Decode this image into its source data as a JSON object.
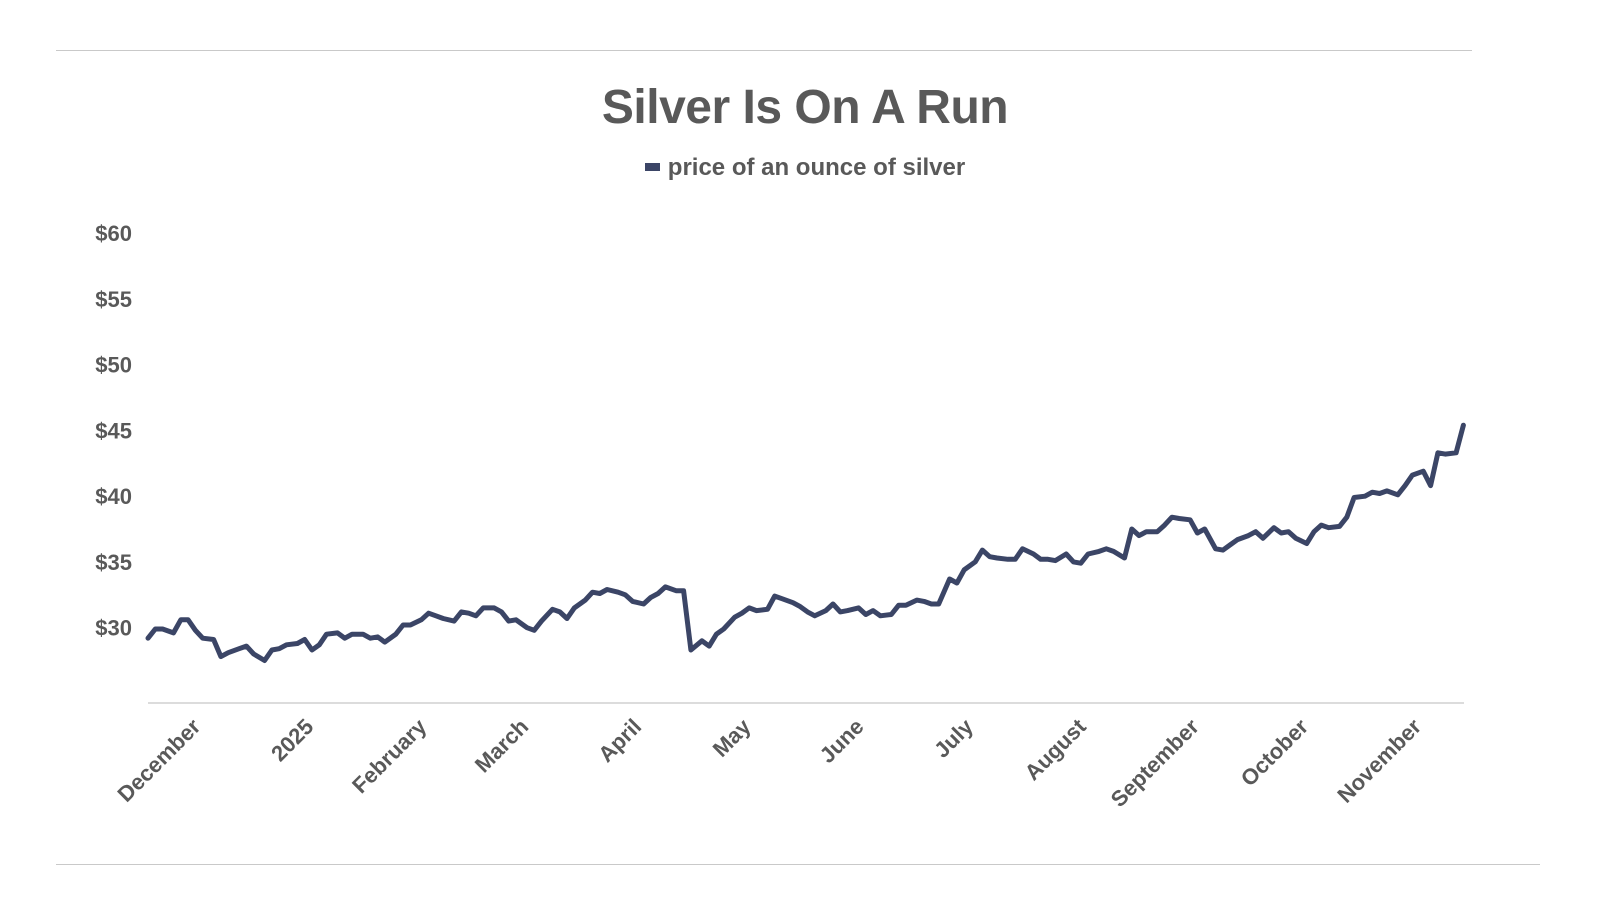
{
  "chart_data": {
    "type": "line",
    "title": "Silver Is On A Run",
    "legend_position": "top-center",
    "grid": false,
    "xlabel": "",
    "ylabel": "",
    "y_tick_labels": [
      "$30",
      "$35",
      "$40",
      "$45",
      "$50",
      "$55",
      "$60"
    ],
    "y_ticks": [
      30,
      35,
      40,
      45,
      50,
      55,
      60
    ],
    "ylim": [
      24.5,
      61
    ],
    "xlim": [
      "2024-11-25",
      "2025-11-25"
    ],
    "x_tick_labels": [
      "December",
      "2025",
      "February",
      "March",
      "April",
      "May",
      "June",
      "July",
      "August",
      "September",
      "October",
      "November"
    ],
    "x_ticks": [
      "2024-12-01",
      "2025-01-01",
      "2025-02-01",
      "2025-03-01",
      "2025-04-01",
      "2025-05-01",
      "2025-06-01",
      "2025-07-01",
      "2025-08-01",
      "2025-09-01",
      "2025-10-01",
      "2025-11-01"
    ],
    "series": [
      {
        "name": "price of an ounce of silver",
        "color": "#3b4566",
        "data": [
          [
            "2024-11-25",
            29.2
          ],
          [
            "2024-11-27",
            29.9
          ],
          [
            "2024-11-29",
            29.9
          ],
          [
            "2024-12-02",
            29.6
          ],
          [
            "2024-12-04",
            30.6
          ],
          [
            "2024-12-06",
            30.6
          ],
          [
            "2024-12-08",
            29.8
          ],
          [
            "2024-12-10",
            29.2
          ],
          [
            "2024-12-13",
            29.1
          ],
          [
            "2024-12-15",
            27.8
          ],
          [
            "2024-12-17",
            28.1
          ],
          [
            "2024-12-20",
            28.4
          ],
          [
            "2024-12-22",
            28.6
          ],
          [
            "2024-12-24",
            28.0
          ],
          [
            "2024-12-27",
            27.5
          ],
          [
            "2024-12-29",
            28.3
          ],
          [
            "2024-12-31",
            28.4
          ],
          [
            "2025-01-02",
            28.7
          ],
          [
            "2025-01-05",
            28.8
          ],
          [
            "2025-01-07",
            29.1
          ],
          [
            "2025-01-09",
            28.3
          ],
          [
            "2025-01-11",
            28.7
          ],
          [
            "2025-01-13",
            29.5
          ],
          [
            "2025-01-16",
            29.6
          ],
          [
            "2025-01-18",
            29.2
          ],
          [
            "2025-01-20",
            29.5
          ],
          [
            "2025-01-23",
            29.5
          ],
          [
            "2025-01-25",
            29.2
          ],
          [
            "2025-01-27",
            29.3
          ],
          [
            "2025-01-29",
            28.9
          ],
          [
            "2025-02-01",
            29.5
          ],
          [
            "2025-02-03",
            30.2
          ],
          [
            "2025-02-05",
            30.2
          ],
          [
            "2025-02-08",
            30.6
          ],
          [
            "2025-02-10",
            31.1
          ],
          [
            "2025-02-12",
            30.9
          ],
          [
            "2025-02-14",
            30.7
          ],
          [
            "2025-02-17",
            30.5
          ],
          [
            "2025-02-19",
            31.2
          ],
          [
            "2025-02-21",
            31.1
          ],
          [
            "2025-02-23",
            30.9
          ],
          [
            "2025-02-25",
            31.5
          ],
          [
            "2025-02-28",
            31.5
          ],
          [
            "2025-03-02",
            31.2
          ],
          [
            "2025-03-04",
            30.5
          ],
          [
            "2025-03-06",
            30.6
          ],
          [
            "2025-03-09",
            30.0
          ],
          [
            "2025-03-11",
            29.8
          ],
          [
            "2025-03-13",
            30.5
          ],
          [
            "2025-03-16",
            31.4
          ],
          [
            "2025-03-18",
            31.2
          ],
          [
            "2025-03-20",
            30.7
          ],
          [
            "2025-03-22",
            31.5
          ],
          [
            "2025-03-25",
            32.1
          ],
          [
            "2025-03-27",
            32.7
          ],
          [
            "2025-03-29",
            32.6
          ],
          [
            "2025-03-31",
            32.9
          ],
          [
            "2025-04-03",
            32.7
          ],
          [
            "2025-04-05",
            32.5
          ],
          [
            "2025-04-07",
            32.0
          ],
          [
            "2025-04-10",
            31.8
          ],
          [
            "2025-04-12",
            32.3
          ],
          [
            "2025-04-14",
            32.6
          ],
          [
            "2025-04-16",
            33.1
          ],
          [
            "2025-04-19",
            32.8
          ],
          [
            "2025-04-21",
            32.8
          ],
          [
            "2025-04-23",
            28.3
          ],
          [
            "2025-04-26",
            29.0
          ],
          [
            "2025-04-28",
            28.6
          ],
          [
            "2025-04-30",
            29.5
          ],
          [
            "2025-05-02",
            29.9
          ],
          [
            "2025-05-05",
            30.8
          ],
          [
            "2025-05-07",
            31.1
          ],
          [
            "2025-05-09",
            31.5
          ],
          [
            "2025-05-11",
            31.3
          ],
          [
            "2025-05-14",
            31.4
          ],
          [
            "2025-05-16",
            32.4
          ],
          [
            "2025-05-18",
            32.2
          ],
          [
            "2025-05-21",
            31.9
          ],
          [
            "2025-05-23",
            31.6
          ],
          [
            "2025-05-25",
            31.2
          ],
          [
            "2025-05-27",
            30.9
          ],
          [
            "2025-05-30",
            31.3
          ],
          [
            "2025-06-01",
            31.8
          ],
          [
            "2025-06-03",
            31.2
          ],
          [
            "2025-06-05",
            31.3
          ],
          [
            "2025-06-08",
            31.5
          ],
          [
            "2025-06-10",
            31.0
          ],
          [
            "2025-06-12",
            31.3
          ],
          [
            "2025-06-14",
            30.9
          ],
          [
            "2025-06-17",
            31.0
          ],
          [
            "2025-06-19",
            31.7
          ],
          [
            "2025-06-21",
            31.7
          ],
          [
            "2025-06-24",
            32.1
          ],
          [
            "2025-06-26",
            32.0
          ],
          [
            "2025-06-28",
            31.8
          ],
          [
            "2025-06-30",
            31.8
          ],
          [
            "2025-07-03",
            33.7
          ],
          [
            "2025-07-05",
            33.4
          ],
          [
            "2025-07-07",
            34.4
          ],
          [
            "2025-07-10",
            35.0
          ],
          [
            "2025-07-12",
            35.9
          ],
          [
            "2025-07-14",
            35.4
          ],
          [
            "2025-07-16",
            35.3
          ],
          [
            "2025-07-19",
            35.2
          ],
          [
            "2025-07-21",
            35.2
          ],
          [
            "2025-07-23",
            36.0
          ],
          [
            "2025-07-26",
            35.6
          ],
          [
            "2025-07-28",
            35.2
          ],
          [
            "2025-07-30",
            35.2
          ],
          [
            "2025-08-01",
            35.1
          ],
          [
            "2025-08-04",
            35.6
          ],
          [
            "2025-08-06",
            35.0
          ],
          [
            "2025-08-08",
            34.9
          ],
          [
            "2025-08-10",
            35.6
          ],
          [
            "2025-08-13",
            35.8
          ],
          [
            "2025-08-15",
            36.0
          ],
          [
            "2025-08-17",
            35.8
          ],
          [
            "2025-08-20",
            35.3
          ],
          [
            "2025-08-22",
            37.5
          ],
          [
            "2025-08-24",
            37.0
          ],
          [
            "2025-08-26",
            37.3
          ],
          [
            "2025-08-29",
            37.3
          ],
          [
            "2025-08-31",
            37.8
          ],
          [
            "2025-09-02",
            38.4
          ],
          [
            "2025-09-04",
            38.3
          ],
          [
            "2025-09-07",
            38.2
          ],
          [
            "2025-09-09",
            37.2
          ],
          [
            "2025-09-11",
            37.5
          ],
          [
            "2025-09-14",
            36.0
          ],
          [
            "2025-09-16",
            35.9
          ],
          [
            "2025-09-18",
            36.3
          ],
          [
            "2025-09-20",
            36.7
          ],
          [
            "2025-09-23",
            37.0
          ],
          [
            "2025-09-25",
            37.3
          ],
          [
            "2025-09-27",
            36.8
          ],
          [
            "2025-09-30",
            37.6
          ],
          [
            "2025-10-02",
            37.2
          ],
          [
            "2025-10-04",
            37.3
          ],
          [
            "2025-10-06",
            36.8
          ],
          [
            "2025-10-09",
            36.4
          ],
          [
            "2025-10-11",
            37.3
          ],
          [
            "2025-10-13",
            37.8
          ],
          [
            "2025-10-15",
            37.6
          ],
          [
            "2025-10-18",
            37.7
          ],
          [
            "2025-10-20",
            38.4
          ],
          [
            "2025-10-22",
            39.9
          ],
          [
            "2025-10-25",
            40.0
          ],
          [
            "2025-10-27",
            40.3
          ],
          [
            "2025-10-29",
            40.2
          ],
          [
            "2025-10-31",
            40.4
          ],
          [
            "2025-11-03",
            40.1
          ],
          [
            "2025-11-05",
            40.8
          ],
          [
            "2025-11-07",
            41.6
          ],
          [
            "2025-11-10",
            41.9
          ],
          [
            "2025-11-12",
            40.8
          ],
          [
            "2025-11-14",
            43.3
          ],
          [
            "2025-11-16",
            43.2
          ],
          [
            "2025-11-19",
            43.3
          ],
          [
            "2025-11-21",
            45.4
          ]
        ]
      }
    ]
  }
}
